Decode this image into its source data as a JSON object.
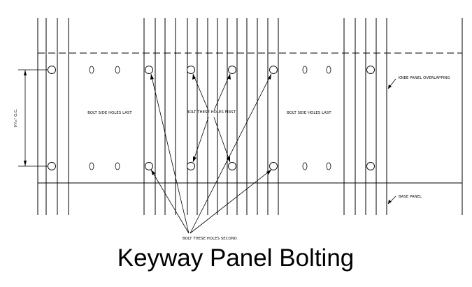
{
  "diagram": {
    "title": "Keyway Panel Bolting",
    "dimension_label": "9¹⁄₁₆\" O.C.",
    "labels": {
      "bolt_side_left": "BOLT SIDE HOLES LAST",
      "bolt_first": "BOLT THESE HOLES FIRST",
      "bolt_side_right": "BOLT SIDE HOLES LAST",
      "knee_panel": "KNEE PANEL OVERLAPPING",
      "base_panel": "BASE PANEL",
      "bolt_second": "BOLT THESE HOLES SECOND"
    }
  }
}
